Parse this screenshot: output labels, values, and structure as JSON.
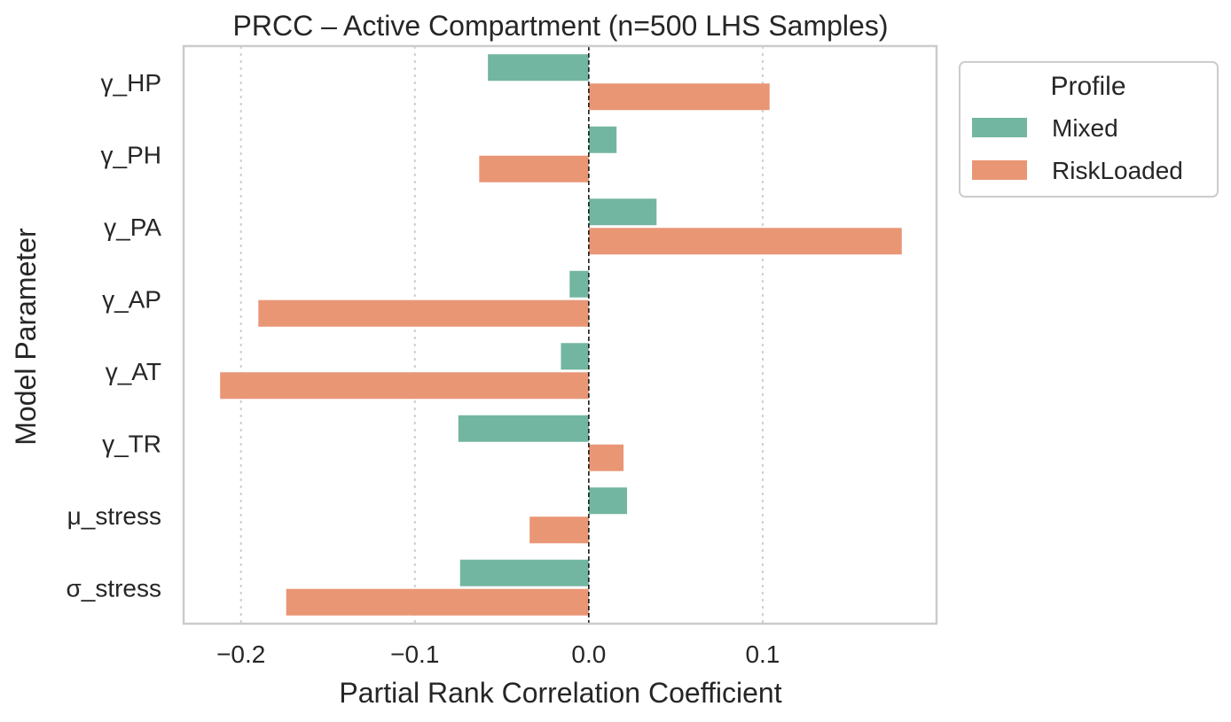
{
  "chart_data": {
    "type": "bar",
    "orientation": "horizontal",
    "title": "PRCC – Active Compartment (n=500 LHS Samples)",
    "xlabel": "Partial Rank Correlation Coefficient",
    "ylabel": "Model Parameter",
    "categories": [
      "γ_HP",
      "γ_PH",
      "γ_PA",
      "γ_AP",
      "γ_AT",
      "γ_TR",
      "μ_stress",
      "σ_stress"
    ],
    "series": [
      {
        "name": "Mixed",
        "color": "#72b6a1",
        "values": [
          -0.058,
          0.016,
          0.039,
          -0.011,
          -0.016,
          -0.075,
          0.022,
          -0.074
        ]
      },
      {
        "name": "RiskLoaded",
        "color": "#e99675",
        "values": [
          0.104,
          -0.063,
          0.18,
          -0.19,
          -0.212,
          0.02,
          -0.034,
          -0.174
        ]
      }
    ],
    "xlim": [
      -0.233,
      0.2
    ],
    "xticks": [
      -0.2,
      -0.1,
      0.0,
      0.1
    ],
    "xtick_labels": [
      "−0.2",
      "−0.1",
      "0.0",
      "0.1"
    ],
    "grid": "vertical dotted",
    "reference_line": 0.0,
    "legend": {
      "title": "Profile",
      "placement": "outside-upper-right",
      "entries": [
        "Mixed",
        "RiskLoaded"
      ]
    }
  }
}
